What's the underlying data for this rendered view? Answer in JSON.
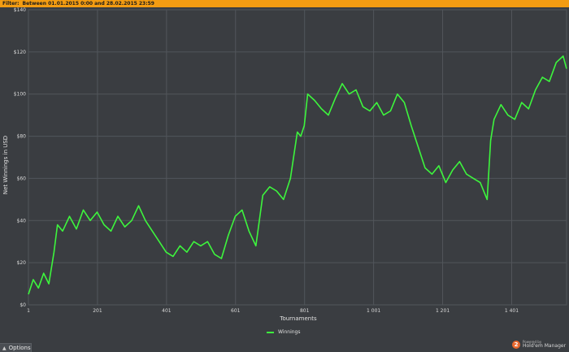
{
  "filter": {
    "label": "Filter:",
    "value": "Between 01.01.2015 0:00 and 28.02.2015 23:59"
  },
  "chart_data": {
    "type": "line",
    "xlabel": "Tournaments",
    "ylabel": "Net Winnings in USD",
    "x_ticks": [
      "1",
      "201",
      "401",
      "601",
      "801",
      "1 001",
      "1 201",
      "1 401"
    ],
    "x_tick_values": [
      1,
      201,
      401,
      601,
      801,
      1001,
      1201,
      1401
    ],
    "y_ticks": [
      "$0",
      "$20",
      "$40",
      "$60",
      "$80",
      "$100",
      "$120",
      "$140"
    ],
    "y_tick_values": [
      0,
      20,
      40,
      60,
      80,
      100,
      120,
      140
    ],
    "xlim": [
      1,
      1560
    ],
    "ylim": [
      0,
      140
    ],
    "grid": true,
    "legend_position": "bottom-center",
    "colors": {
      "series": "#3df53d",
      "background": "#3a3d41",
      "grid": "#52565b"
    },
    "series": [
      {
        "name": "Winnings",
        "x": [
          1,
          15,
          30,
          45,
          60,
          75,
          85,
          100,
          120,
          140,
          160,
          180,
          200,
          220,
          240,
          260,
          280,
          300,
          320,
          340,
          360,
          380,
          400,
          420,
          440,
          460,
          480,
          500,
          520,
          540,
          560,
          580,
          600,
          620,
          640,
          660,
          680,
          700,
          720,
          740,
          760,
          780,
          790,
          800,
          810,
          830,
          850,
          870,
          890,
          910,
          930,
          950,
          970,
          990,
          1010,
          1030,
          1050,
          1070,
          1090,
          1110,
          1130,
          1150,
          1170,
          1190,
          1210,
          1230,
          1250,
          1270,
          1290,
          1310,
          1330,
          1340,
          1350,
          1370,
          1390,
          1410,
          1430,
          1450,
          1470,
          1490,
          1510,
          1530,
          1550,
          1560
        ],
        "values": [
          5,
          12,
          8,
          15,
          10,
          25,
          38,
          35,
          42,
          36,
          45,
          40,
          44,
          38,
          35,
          42,
          37,
          40,
          47,
          40,
          35,
          30,
          25,
          23,
          28,
          25,
          30,
          28,
          30,
          24,
          22,
          33,
          42,
          45,
          35,
          28,
          52,
          56,
          54,
          50,
          60,
          82,
          80,
          85,
          100,
          97,
          93,
          90,
          98,
          105,
          100,
          102,
          94,
          92,
          96,
          90,
          92,
          100,
          96,
          85,
          75,
          65,
          62,
          66,
          58,
          64,
          68,
          62,
          60,
          58,
          50,
          78,
          88,
          95,
          90,
          88,
          96,
          93,
          102,
          108,
          106,
          115,
          118,
          112
        ]
      }
    ]
  },
  "legend": {
    "label": "Winnings"
  },
  "options": {
    "label": "Options"
  },
  "brand": {
    "logo_char": "2",
    "powered": "Powered by",
    "name": "Hold'em Manager"
  }
}
